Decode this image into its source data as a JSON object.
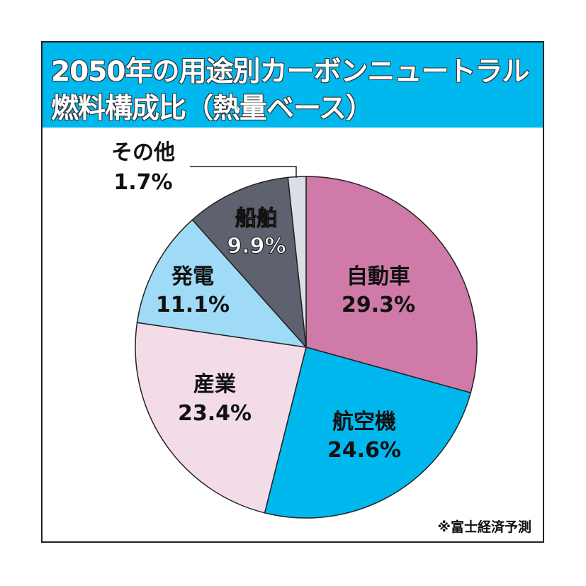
{
  "chart_data": {
    "type": "pie",
    "title": [
      "2050年の用途別カーボンニュートラル",
      "燃料構成比（熱量ベース）"
    ],
    "start_angle": "12 o'clock",
    "direction": "clockwise",
    "slices": [
      {
        "label": "自動車",
        "value": 29.3,
        "value_label": "29.3%",
        "color": "#cf7aa9"
      },
      {
        "label": "航空機",
        "value": 24.6,
        "value_label": "24.6%",
        "color": "#00b8ee"
      },
      {
        "label": "産業",
        "value": 23.4,
        "value_label": "23.4%",
        "color": "#f3dce8"
      },
      {
        "label": "発電",
        "value": 11.1,
        "value_label": "11.1%",
        "color": "#9fdaf6"
      },
      {
        "label": "船舶",
        "value": 9.9,
        "value_label": "9.9%",
        "color": "#5e626e"
      },
      {
        "label": "その他",
        "value": 1.7,
        "value_label": "1.7%",
        "color": "#d9dfe5"
      }
    ],
    "source": "※富士経済予測"
  }
}
